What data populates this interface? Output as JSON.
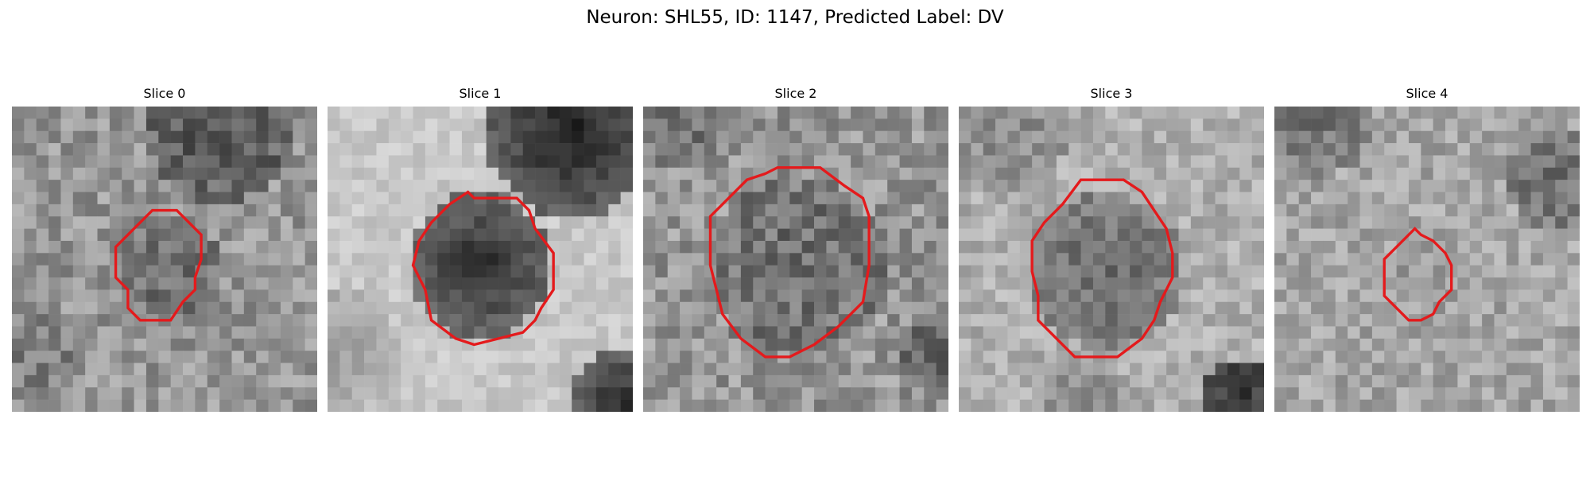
{
  "figure": {
    "title": "Neuron: SHL55, ID: 1147, Predicted Label: DV"
  },
  "colors": {
    "contour": "#e41a1c",
    "background": "#ffffff"
  },
  "panels": [
    {
      "title": "Slice 0",
      "grayscale_texture": "noisy grey field with darker region top-right",
      "contour": [
        [
          11.5,
          8.5
        ],
        [
          13.5,
          8.5
        ],
        [
          15.5,
          10.5
        ],
        [
          15.5,
          12.5
        ],
        [
          15,
          14
        ],
        [
          15,
          15
        ],
        [
          14,
          16
        ],
        [
          13,
          17.5
        ],
        [
          10.5,
          17.5
        ],
        [
          9.5,
          16.5
        ],
        [
          9.5,
          15
        ],
        [
          8.5,
          14
        ],
        [
          8.5,
          11.5
        ],
        [
          10,
          10
        ]
      ]
    },
    {
      "title": "Slice 1",
      "grayscale_texture": "dark soma on bright surround, dark blob top-right",
      "contour": [
        [
          12,
          7.5
        ],
        [
          15.5,
          7.5
        ],
        [
          16.5,
          8.5
        ],
        [
          17,
          10
        ],
        [
          18.5,
          12
        ],
        [
          18.5,
          15
        ],
        [
          17.5,
          16.5
        ],
        [
          17,
          17.5
        ],
        [
          16,
          18.5
        ],
        [
          14,
          19
        ],
        [
          12,
          19.5
        ],
        [
          10.5,
          19
        ],
        [
          8.5,
          17.5
        ],
        [
          8,
          15
        ],
        [
          7,
          13
        ],
        [
          7.5,
          11
        ],
        [
          8.5,
          9.5
        ],
        [
          10,
          8
        ],
        [
          11.5,
          7
        ]
      ]
    },
    {
      "title": "Slice 2",
      "grayscale_texture": "large grey textured soma",
      "contour": [
        [
          11,
          5
        ],
        [
          14.5,
          5
        ],
        [
          16.5,
          6.5
        ],
        [
          18,
          7.5
        ],
        [
          18.5,
          9
        ],
        [
          18.5,
          13
        ],
        [
          18,
          16
        ],
        [
          16,
          18
        ],
        [
          14,
          19.5
        ],
        [
          12,
          20.5
        ],
        [
          10,
          20.5
        ],
        [
          8,
          19
        ],
        [
          6.5,
          17
        ],
        [
          6,
          15
        ],
        [
          5.5,
          13
        ],
        [
          5.5,
          9
        ],
        [
          7,
          7.5
        ],
        [
          8.5,
          6
        ],
        [
          10,
          5.5
        ]
      ]
    },
    {
      "title": "Slice 3",
      "grayscale_texture": "grey soma on light background, dark corner bottom-right",
      "contour": [
        [
          10,
          6
        ],
        [
          13.5,
          6
        ],
        [
          15,
          7
        ],
        [
          16,
          8.5
        ],
        [
          17,
          10
        ],
        [
          17.5,
          12
        ],
        [
          17.5,
          14
        ],
        [
          16.5,
          16
        ],
        [
          16,
          17.5
        ],
        [
          15,
          19
        ],
        [
          13,
          20.5
        ],
        [
          9.5,
          20.5
        ],
        [
          8,
          19
        ],
        [
          6.5,
          17.5
        ],
        [
          6.5,
          15.5
        ],
        [
          6,
          13.5
        ],
        [
          6,
          11
        ],
        [
          7,
          9.5
        ],
        [
          8.5,
          8
        ]
      ]
    },
    {
      "title": "Slice 4",
      "grayscale_texture": "light grey noisy field, darker top-right",
      "contour": [
        [
          11.5,
          10
        ],
        [
          12,
          10.5
        ],
        [
          13,
          11
        ],
        [
          14,
          12
        ],
        [
          14.5,
          13
        ],
        [
          14.5,
          15
        ],
        [
          13.5,
          16
        ],
        [
          13,
          17
        ],
        [
          12,
          17.5
        ],
        [
          11,
          17.5
        ],
        [
          10,
          16.5
        ],
        [
          9,
          15.5
        ],
        [
          9,
          12.5
        ],
        [
          10,
          11.5
        ],
        [
          11,
          10.5
        ]
      ]
    }
  ]
}
